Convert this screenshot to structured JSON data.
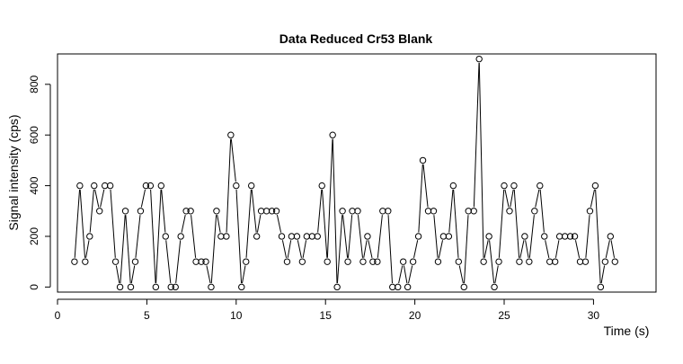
{
  "chart_data": {
    "type": "line",
    "title": "Data Reduced Cr53 Blank",
    "xlabel": "Time (s)",
    "ylabel": "Signal intensity (cps)",
    "xlim": [
      0,
      33.5
    ],
    "ylim": [
      -20,
      920
    ],
    "xticks": [
      0,
      5,
      10,
      15,
      20,
      25,
      30
    ],
    "yticks": [
      0,
      200,
      400,
      600,
      800
    ],
    "grid": false,
    "marker": "open-circle",
    "line_color": "#000000",
    "series": [
      {
        "x": [
          0.95,
          1.25,
          1.55,
          1.8,
          2.05,
          2.35,
          2.65,
          2.95,
          3.25,
          3.5,
          3.8,
          4.1,
          4.35,
          4.65,
          4.95,
          5.2,
          5.5,
          5.8,
          6.05,
          6.35,
          6.6,
          6.9,
          7.2,
          7.45,
          7.75,
          8.05,
          8.3,
          8.6,
          8.9,
          9.15,
          9.45,
          9.7,
          10.0,
          10.3,
          10.55,
          10.85,
          11.15,
          11.4,
          11.7,
          12.0,
          12.25,
          12.55,
          12.85,
          13.1,
          13.4,
          13.7,
          13.95,
          14.25,
          14.55,
          14.8,
          15.1,
          15.4,
          15.65,
          15.95,
          16.25,
          16.5,
          16.8,
          17.1,
          17.35,
          17.65,
          17.9,
          18.2,
          18.5,
          18.75,
          19.05,
          19.35,
          19.6,
          19.9,
          20.2,
          20.45,
          20.75,
          21.05,
          21.3,
          21.6,
          21.9,
          22.15,
          22.45,
          22.75,
          23.0,
          23.3,
          23.6,
          23.85,
          24.15,
          24.45,
          24.7,
          25.0,
          25.3,
          25.55,
          25.85,
          26.15,
          26.4,
          26.7,
          27.0,
          27.25,
          27.55,
          27.85,
          28.1,
          28.4,
          28.7,
          28.95,
          29.25,
          29.55,
          29.8,
          30.1,
          30.4,
          30.65,
          30.95,
          31.2
        ],
        "y": [
          100,
          400,
          100,
          200,
          400,
          300,
          400,
          400,
          100,
          0,
          300,
          0,
          100,
          300,
          400,
          400,
          0,
          400,
          200,
          0,
          0,
          200,
          300,
          300,
          100,
          100,
          100,
          0,
          300,
          200,
          200,
          600,
          400,
          0,
          100,
          400,
          200,
          300,
          300,
          300,
          300,
          200,
          100,
          200,
          200,
          100,
          200,
          200,
          200,
          400,
          100,
          600,
          0,
          300,
          100,
          300,
          300,
          100,
          200,
          100,
          100,
          300,
          300,
          0,
          0,
          100,
          0,
          100,
          200,
          500,
          300,
          300,
          100,
          200,
          200,
          400,
          100,
          0,
          300,
          300,
          900,
          100,
          200,
          0,
          100,
          400,
          300,
          400,
          100,
          200,
          100,
          300,
          400,
          200,
          100,
          100,
          200,
          200,
          200,
          200,
          100,
          100,
          300,
          400,
          0,
          100,
          200,
          100
        ]
      }
    ]
  }
}
